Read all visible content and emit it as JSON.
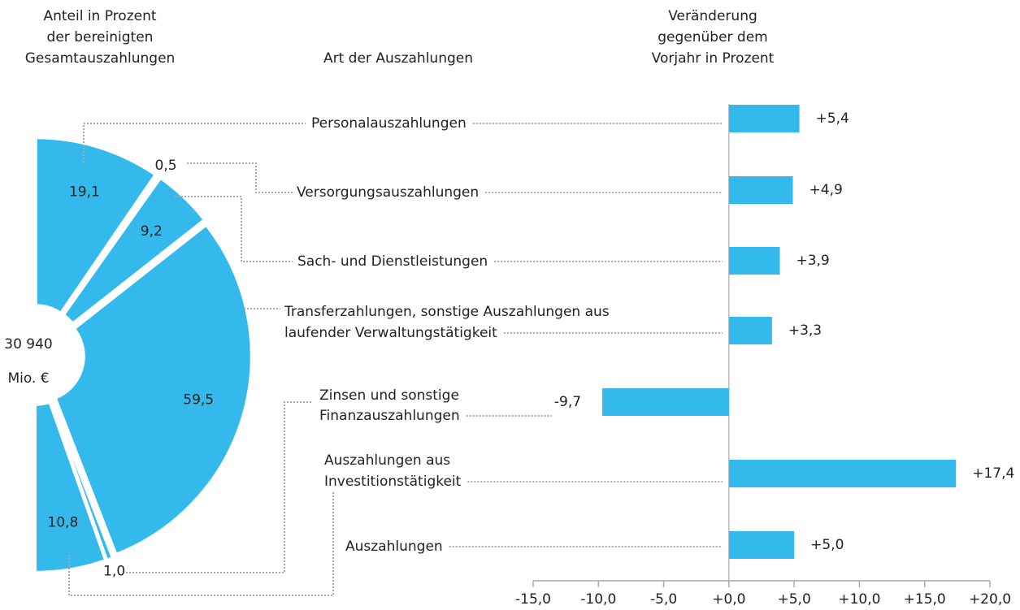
{
  "chart_data": [
    {
      "type": "pie",
      "title": [
        "Anteil in Prozent",
        "der bereinigten",
        "Gesamtauszahlungen"
      ],
      "total_label": [
        "30 940",
        "Mio. €"
      ],
      "values": [
        19.1,
        0.5,
        9.2,
        59.5,
        1.0,
        10.8
      ],
      "value_labels": [
        "19,1",
        "0,5",
        "9,2",
        "59,5",
        "1,0",
        "10,8"
      ],
      "color": "#33b9ec"
    },
    {
      "type": "bar",
      "title": [
        "Veränderung",
        "gegenüber dem",
        "Vorjahr in Prozent"
      ],
      "category_title": "Art der Auszahlungen",
      "categories": [
        [
          "Personalauszahlungen"
        ],
        [
          "Versorgungsauszahlungen"
        ],
        [
          "Sach- und Dienstleistungen"
        ],
        [
          "Transferzahlungen, sonstige Auszahlungen aus",
          "laufender Verwaltungstätigkeit"
        ],
        [
          "Zinsen und sonstige",
          "Finanzauszahlungen"
        ],
        [
          "Auszahlungen aus",
          "Investitionstätigkeit"
        ],
        [
          "Auszahlungen"
        ]
      ],
      "values": [
        5.4,
        4.9,
        3.9,
        3.3,
        -9.7,
        17.4,
        5.0
      ],
      "value_labels": [
        "+5,4",
        "+4,9",
        "+3,9",
        "+3,3",
        "-9,7",
        "+17,4",
        "+5,0"
      ],
      "color": "#33b9ec",
      "xlim": [
        -15,
        20
      ],
      "xticks": [
        {
          "value": -15,
          "label": "-15,0"
        },
        {
          "value": -10,
          "label": "-10,0"
        },
        {
          "value": -5,
          "label": "-5,0"
        },
        {
          "value": 0,
          "label": "+0,0"
        },
        {
          "value": 5,
          "label": "+5,0"
        },
        {
          "value": 10,
          "label": "+10,0"
        },
        {
          "value": 15,
          "label": "+15,0"
        },
        {
          "value": 20,
          "label": "+20,0"
        }
      ]
    }
  ]
}
